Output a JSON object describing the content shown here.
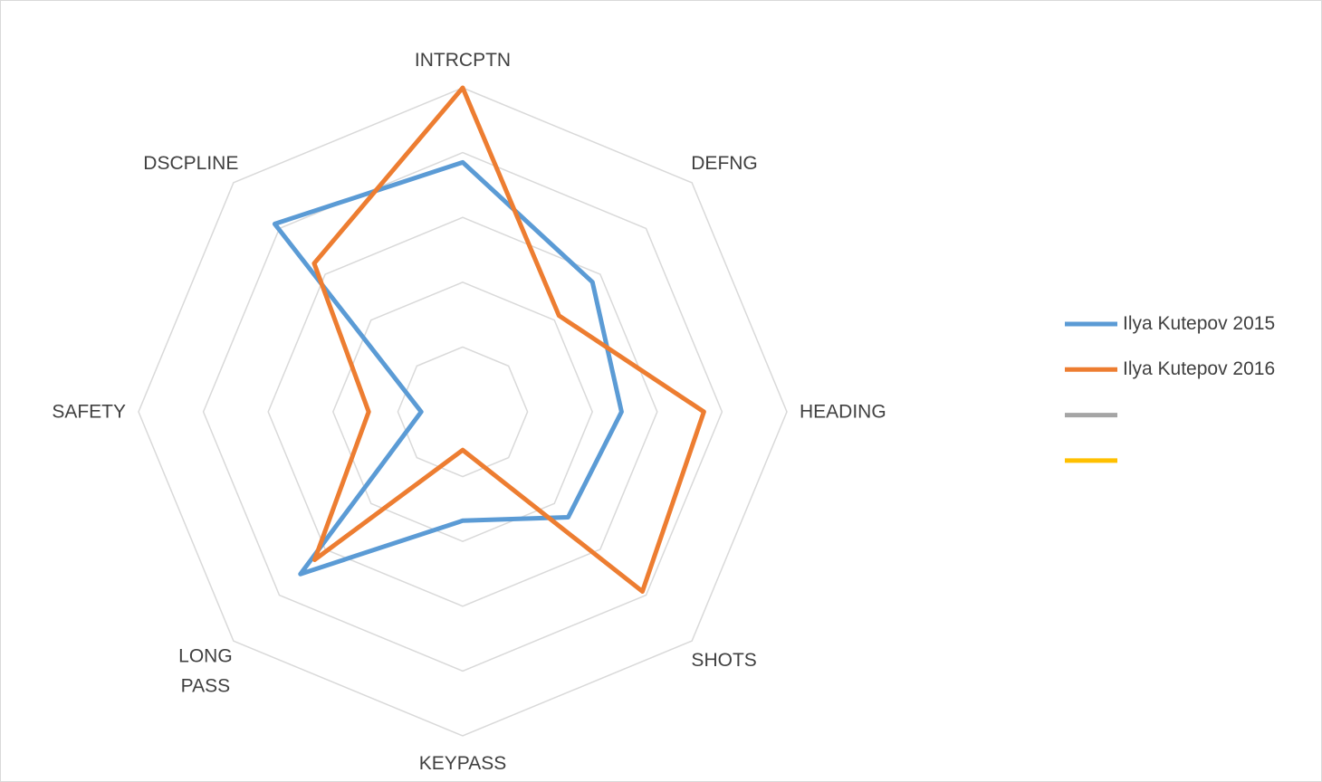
{
  "chart_data": {
    "type": "radar",
    "categories": [
      "INTRCPTN",
      "DEFNG",
      "HEADING",
      "SHOTS",
      "KEYPASS",
      "LONG PASS",
      "SAFETY",
      "DSCPLINE"
    ],
    "series": [
      {
        "name": "Ilya Kutepov 2015",
        "color": "#5b9bd5",
        "values": [
          3.85,
          2.83,
          2.45,
          2.3,
          1.68,
          3.54,
          0.64,
          4.1
        ]
      },
      {
        "name": "Ilya Kutepov 2016",
        "color": "#ed7d31",
        "values": [
          5,
          2.1,
          3.72,
          3.92,
          0.59,
          3.23,
          1.45,
          3.24
        ]
      },
      {
        "color": "#a5a5a5",
        "values": [
          null,
          null,
          null,
          null,
          null,
          null,
          null,
          null
        ]
      },
      {
        "color": "#ffc000",
        "values": [
          null,
          null,
          null,
          null,
          null,
          null,
          null,
          null
        ]
      }
    ],
    "ylim": [
      0,
      5
    ],
    "yticks": [
      1,
      2,
      3,
      4,
      5
    ],
    "grid": true,
    "legend": "right"
  }
}
